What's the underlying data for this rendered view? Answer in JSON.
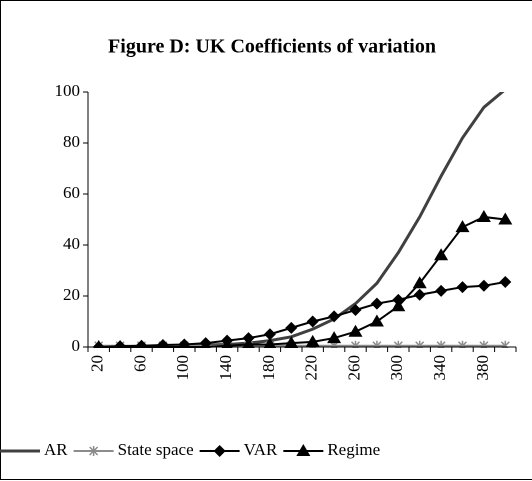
{
  "chart_data": {
    "type": "line",
    "title": "Figure D: UK Coefficients of variation",
    "categories": [
      20,
      null,
      60,
      null,
      100,
      null,
      140,
      null,
      180,
      null,
      220,
      null,
      260,
      null,
      300,
      null,
      340,
      null,
      380,
      null
    ],
    "ylim": [
      0,
      100
    ],
    "yticks": [
      0,
      20,
      40,
      60,
      80,
      100
    ],
    "grid": false,
    "legend": "bottom",
    "series": [
      {
        "name": "AR",
        "color": "#404040",
        "marker": "none",
        "values": [
          0,
          0,
          0,
          0.2,
          0.5,
          0.8,
          1,
          1.5,
          2.5,
          4,
          7,
          11,
          17,
          25,
          37,
          51,
          67,
          82,
          94,
          101
        ]
      },
      {
        "name": "State space",
        "color": "#8c8c8c",
        "marker": "asterisk",
        "values": [
          0.5,
          0.5,
          0.5,
          0.5,
          0.5,
          0.5,
          0.5,
          0.5,
          0.5,
          0.5,
          0.5,
          0.5,
          0.5,
          0.5,
          0.5,
          0.5,
          0.5,
          0.5,
          0.5,
          0.5
        ]
      },
      {
        "name": "VAR",
        "color": "#000000",
        "marker": "diamond",
        "values": [
          0,
          0.3,
          0.5,
          0.8,
          1,
          1.5,
          2.5,
          3.5,
          5,
          7.5,
          10,
          12,
          14.5,
          17,
          18.5,
          20.5,
          22,
          23.5,
          24,
          25.5
        ]
      },
      {
        "name": "Regime",
        "color": "#000000",
        "marker": "triangle",
        "values": [
          0,
          0,
          0,
          0,
          0,
          0,
          0.5,
          1,
          1,
          1.5,
          2,
          3.5,
          6,
          10,
          16,
          25,
          36,
          47,
          51,
          50
        ]
      }
    ]
  }
}
